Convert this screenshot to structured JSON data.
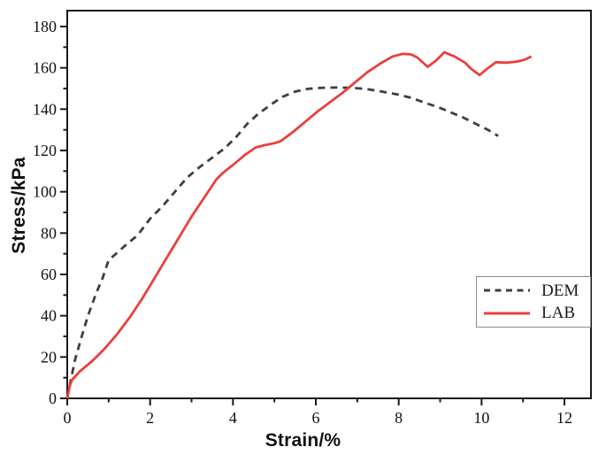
{
  "figure": {
    "background_color": "#ffffff",
    "spine_color": "#1a1a1a"
  },
  "x_axis": {
    "title": "Strain/%",
    "range": [
      0,
      12.64
    ],
    "major_ticks": [
      0,
      2,
      4,
      6,
      8,
      10,
      12
    ],
    "minor_tick_step": 1
  },
  "y_axis": {
    "title": "Stress/kPa",
    "range": [
      0,
      187.7
    ],
    "major_ticks": [
      0,
      20,
      40,
      60,
      80,
      100,
      120,
      140,
      160,
      180
    ],
    "minor_tick_step": 10
  },
  "legend": {
    "position": "right-center",
    "items": [
      {
        "label": "DEM",
        "style": "dashed",
        "color": "#3f3f3f"
      },
      {
        "label": "LAB",
        "style": "solid",
        "color": "#e8403d"
      }
    ]
  },
  "chart_data": {
    "type": "line",
    "title": "",
    "xlabel": "Strain/%",
    "ylabel": "Stress/kPa",
    "xlim": [
      0,
      12.64
    ],
    "ylim": [
      0,
      187.7
    ],
    "grid": false,
    "legend_position": "right-center",
    "series": [
      {
        "name": "DEM",
        "color": "#3f3f3f",
        "style": "dashed",
        "points": [
          [
            0,
            0
          ],
          [
            0.08,
            8
          ],
          [
            0.18,
            18
          ],
          [
            0.32,
            28
          ],
          [
            0.5,
            40
          ],
          [
            0.7,
            51
          ],
          [
            0.85,
            58
          ],
          [
            1.0,
            67
          ],
          [
            1.15,
            69.5
          ],
          [
            1.4,
            74
          ],
          [
            1.7,
            79
          ],
          [
            2.0,
            87
          ],
          [
            2.3,
            93
          ],
          [
            2.6,
            100
          ],
          [
            2.9,
            107
          ],
          [
            3.2,
            112
          ],
          [
            3.5,
            116.5
          ],
          [
            3.8,
            121
          ],
          [
            4.1,
            127
          ],
          [
            4.35,
            133
          ],
          [
            4.6,
            137.5
          ],
          [
            4.9,
            142
          ],
          [
            5.2,
            146
          ],
          [
            5.5,
            148.5
          ],
          [
            5.8,
            149.8
          ],
          [
            6.1,
            150.3
          ],
          [
            6.5,
            150.5
          ],
          [
            6.9,
            150.3
          ],
          [
            7.2,
            149.8
          ],
          [
            7.6,
            148.5
          ],
          [
            8.0,
            147
          ],
          [
            8.3,
            145.5
          ],
          [
            8.65,
            143
          ],
          [
            8.95,
            141
          ],
          [
            9.25,
            138.5
          ],
          [
            9.55,
            136
          ],
          [
            9.85,
            133
          ],
          [
            10.15,
            130
          ],
          [
            10.4,
            127
          ]
        ]
      },
      {
        "name": "LAB",
        "color": "#e8403d",
        "style": "solid",
        "points": [
          [
            0,
            0
          ],
          [
            0.06,
            6
          ],
          [
            0.12,
            9
          ],
          [
            0.3,
            13
          ],
          [
            0.6,
            18
          ],
          [
            0.9,
            24
          ],
          [
            1.2,
            31
          ],
          [
            1.5,
            39
          ],
          [
            1.8,
            48
          ],
          [
            2.1,
            58
          ],
          [
            2.4,
            68
          ],
          [
            2.7,
            78
          ],
          [
            3.0,
            88
          ],
          [
            3.3,
            97
          ],
          [
            3.6,
            106
          ],
          [
            3.75,
            109
          ],
          [
            4.0,
            113
          ],
          [
            4.3,
            118
          ],
          [
            4.55,
            121.5
          ],
          [
            4.75,
            122.5
          ],
          [
            5.0,
            123.5
          ],
          [
            5.15,
            124.5
          ],
          [
            5.45,
            129
          ],
          [
            5.75,
            134
          ],
          [
            6.05,
            139
          ],
          [
            6.35,
            143.5
          ],
          [
            6.65,
            148
          ],
          [
            6.95,
            153
          ],
          [
            7.25,
            158
          ],
          [
            7.55,
            162
          ],
          [
            7.85,
            165.5
          ],
          [
            8.1,
            166.8
          ],
          [
            8.3,
            166.5
          ],
          [
            8.45,
            165
          ],
          [
            8.7,
            160.5
          ],
          [
            8.9,
            163.5
          ],
          [
            9.1,
            167.5
          ],
          [
            9.35,
            165.5
          ],
          [
            9.6,
            162.5
          ],
          [
            9.75,
            159.5
          ],
          [
            9.95,
            156.5
          ],
          [
            10.15,
            159.8
          ],
          [
            10.35,
            162.7
          ],
          [
            10.6,
            162.5
          ],
          [
            10.85,
            163
          ],
          [
            11.05,
            164
          ],
          [
            11.2,
            165.5
          ]
        ]
      }
    ]
  }
}
